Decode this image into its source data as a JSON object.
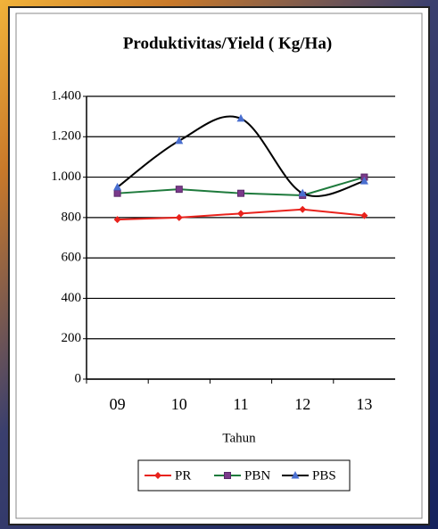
{
  "chart_data": {
    "type": "line",
    "title": "Produktivitas/Yield ( Kg/Ha)",
    "x_label": "Tahun",
    "categories": [
      "09",
      "10",
      "11",
      "12",
      "13"
    ],
    "series": [
      {
        "name": "PR",
        "color": "#e8221c",
        "marker": "diamond",
        "marker_color": "#e8221c",
        "smooth": false,
        "values": [
          790,
          800,
          820,
          840,
          810
        ]
      },
      {
        "name": "PBN",
        "color": "#1e7a3c",
        "marker": "square",
        "marker_color": "#7a3a8a",
        "smooth": false,
        "values": [
          920,
          940,
          920,
          910,
          1000
        ]
      },
      {
        "name": "PBS",
        "color": "#000000",
        "marker": "triangle",
        "marker_color": "#4a6fd0",
        "smooth": true,
        "values": [
          950,
          1180,
          1290,
          920,
          980
        ]
      }
    ],
    "ylim": [
      0,
      1400
    ],
    "yticks": [
      0,
      200,
      400,
      600,
      800,
      {
        "value": 1000,
        "label": "1.000"
      },
      {
        "value": 1200,
        "label": "1.200"
      },
      {
        "value": 1400,
        "label": "1.400"
      }
    ],
    "grid": true,
    "legend": "bottom"
  }
}
